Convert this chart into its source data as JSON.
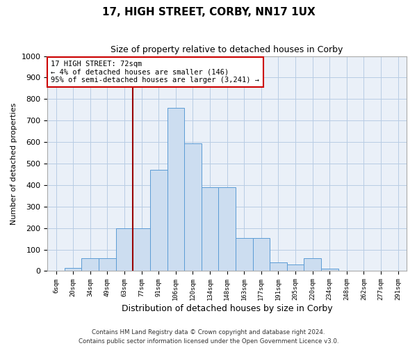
{
  "title1": "17, HIGH STREET, CORBY, NN17 1UX",
  "title2": "Size of property relative to detached houses in Corby",
  "xlabel": "Distribution of detached houses by size in Corby",
  "ylabel": "Number of detached properties",
  "categories": [
    "6sqm",
    "20sqm",
    "34sqm",
    "49sqm",
    "63sqm",
    "77sqm",
    "91sqm",
    "106sqm",
    "120sqm",
    "134sqm",
    "148sqm",
    "163sqm",
    "177sqm",
    "191sqm",
    "205sqm",
    "220sqm",
    "234sqm",
    "248sqm",
    "262sqm",
    "277sqm",
    "291sqm"
  ],
  "values": [
    0,
    15,
    60,
    60,
    200,
    200,
    470,
    760,
    595,
    390,
    390,
    155,
    155,
    40,
    30,
    60,
    10,
    0,
    0,
    0,
    0
  ],
  "bar_color": "#ccddf0",
  "bar_edge_color": "#5b9bd5",
  "vline_x_index": 4,
  "vline_color": "#990000",
  "annotation_text": "17 HIGH STREET: 72sqm\n← 4% of detached houses are smaller (146)\n95% of semi-detached houses are larger (3,241) →",
  "annotation_box_color": "#ffffff",
  "annotation_box_edge": "#cc0000",
  "ylim": [
    0,
    1000
  ],
  "yticks": [
    0,
    100,
    200,
    300,
    400,
    500,
    600,
    700,
    800,
    900,
    1000
  ],
  "footer1": "Contains HM Land Registry data © Crown copyright and database right 2024.",
  "footer2": "Contains public sector information licensed under the Open Government Licence v3.0.",
  "plot_bg_color": "#eaf0f8"
}
